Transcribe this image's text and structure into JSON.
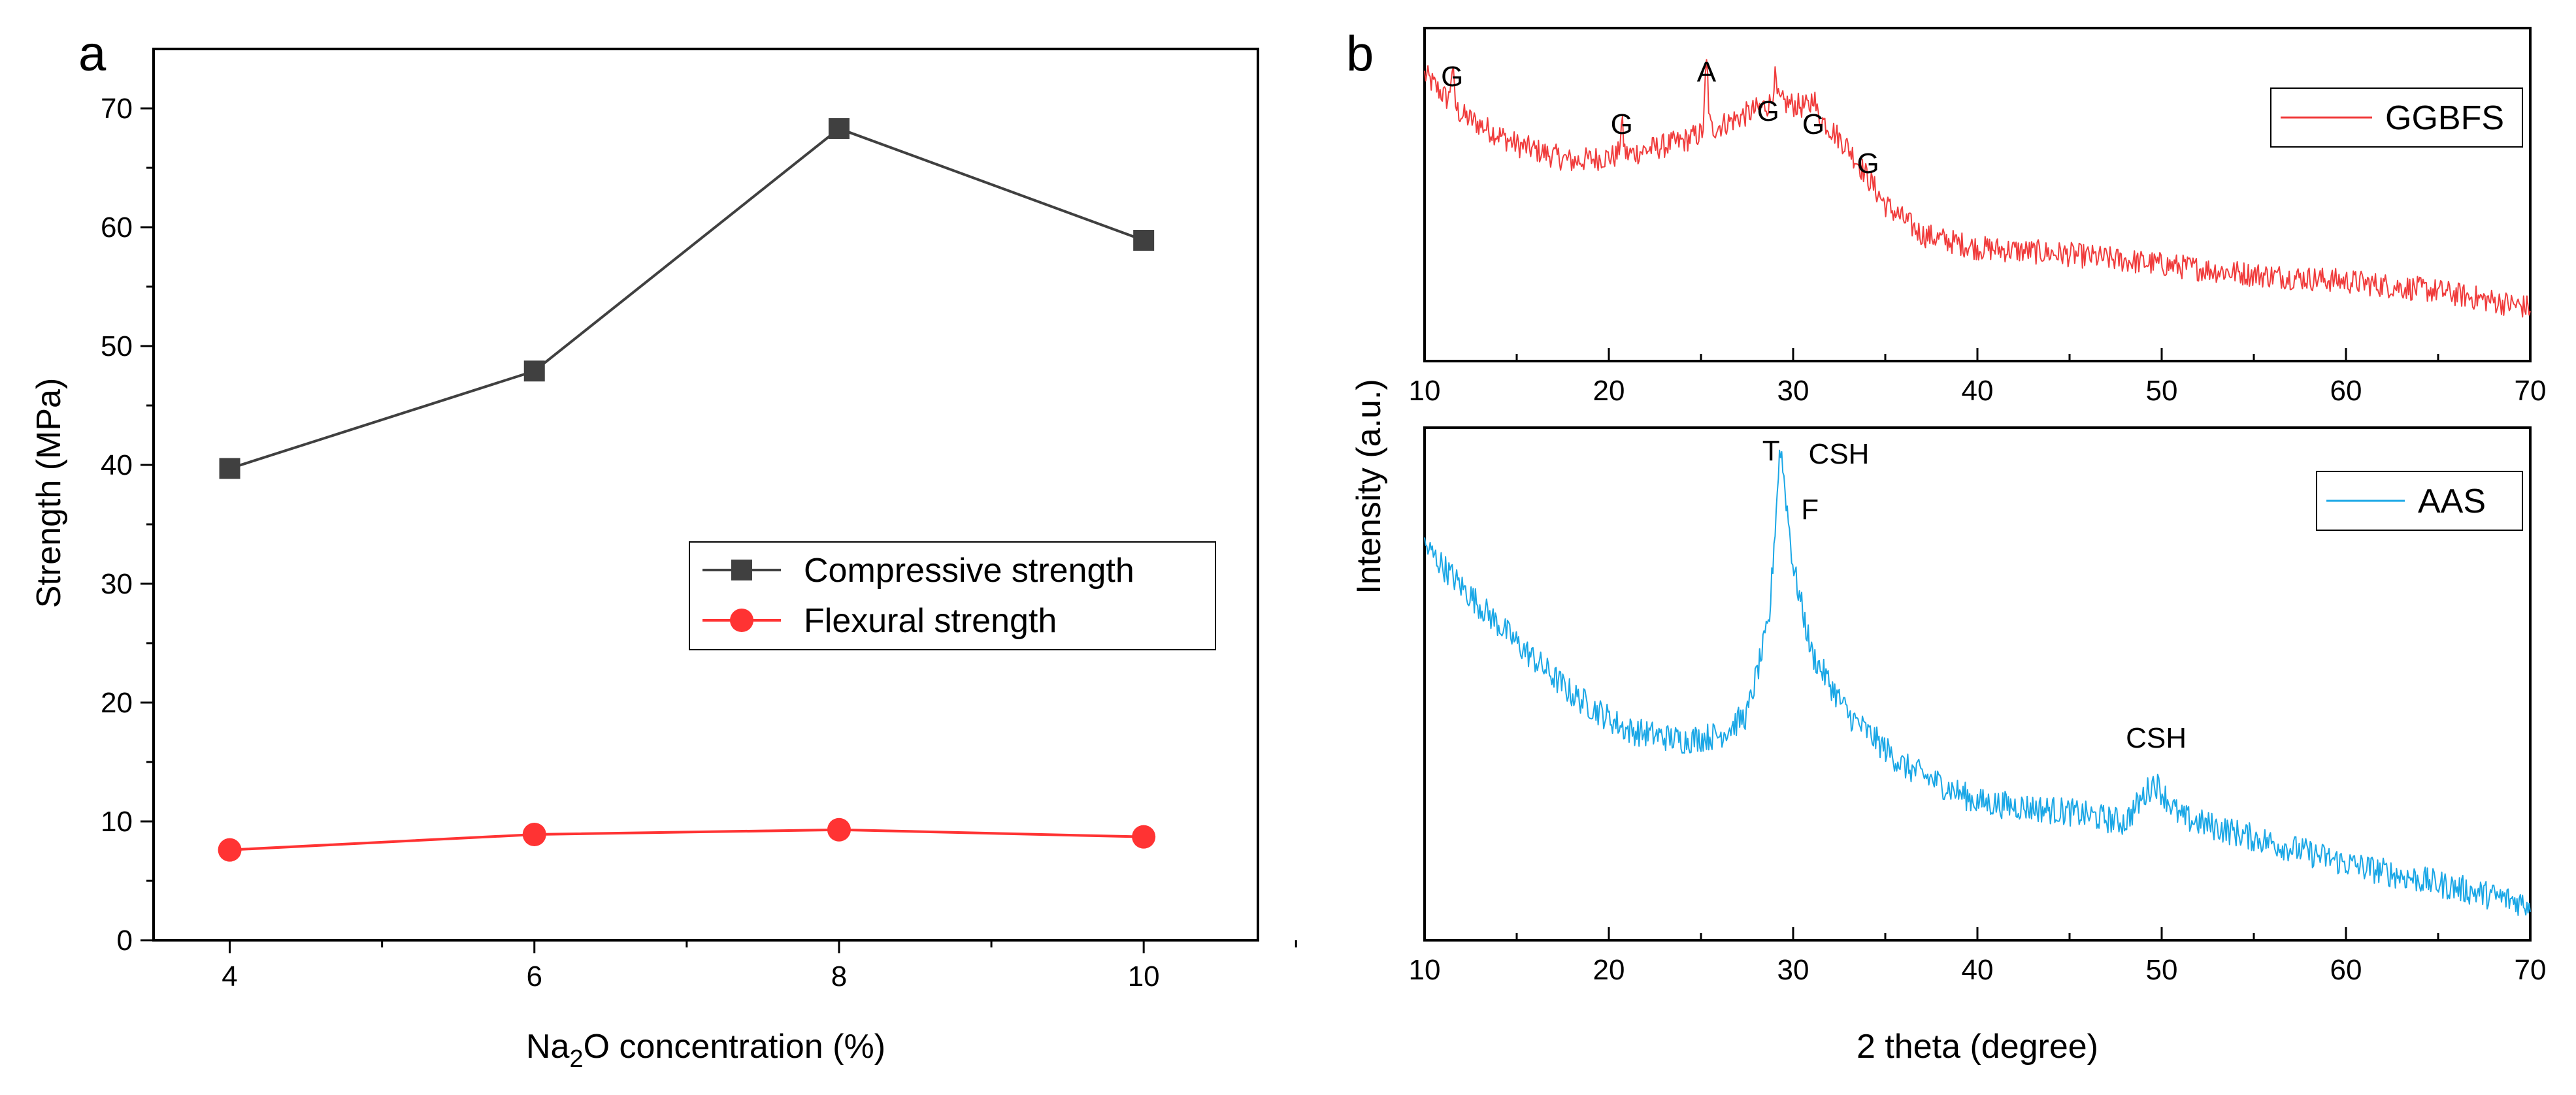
{
  "chart_data": [
    {
      "type": "line",
      "panel_label": "a",
      "xlabel_parts": [
        "Na",
        "2",
        "O concentration (%)"
      ],
      "ylabel": "Strength (MPa)",
      "xlim": [
        3.5,
        10.75
      ],
      "ylim": [
        0,
        75
      ],
      "x_ticks": [
        "4",
        "6",
        "8",
        "10"
      ],
      "y_ticks": [
        "0",
        "10",
        "20",
        "30",
        "40",
        "50",
        "60",
        "70"
      ],
      "categories": [
        4,
        6,
        8,
        10
      ],
      "legend_position": "center-right",
      "series": [
        {
          "name": "Compressive strength",
          "marker": "square",
          "color": "#404040",
          "values": [
            39.7,
            47.9,
            68.3,
            58.9
          ]
        },
        {
          "name": "Flexural strength",
          "marker": "circle",
          "color": "#ff3333",
          "values": [
            7.6,
            8.9,
            9.3,
            8.7
          ]
        }
      ]
    },
    {
      "type": "line",
      "panel_label": "b",
      "xlabel": "2 theta (degree)",
      "ylabel": "Intensity (a.u.)",
      "xlim": [
        10,
        70
      ],
      "x_ticks": [
        "10",
        "20",
        "30",
        "40",
        "50",
        "60",
        "70"
      ],
      "subplots": [
        {
          "name": "GGBFS",
          "color": "#f03c3c",
          "legend_position": "top-right",
          "baseline": [
            [
              10,
              0.86
            ],
            [
              12,
              0.74
            ],
            [
              15,
              0.65
            ],
            [
              18,
              0.6
            ],
            [
              21,
              0.62
            ],
            [
              24,
              0.66
            ],
            [
              27,
              0.73
            ],
            [
              29,
              0.78
            ],
            [
              31,
              0.76
            ],
            [
              33,
              0.64
            ],
            [
              35,
              0.47
            ],
            [
              37,
              0.38
            ],
            [
              40,
              0.34
            ],
            [
              45,
              0.32
            ],
            [
              50,
              0.29
            ],
            [
              55,
              0.26
            ],
            [
              60,
              0.24
            ],
            [
              65,
              0.21
            ],
            [
              70,
              0.16
            ]
          ],
          "peaks": [
            {
              "label": "G",
              "x": 11.5,
              "height": 0.11
            },
            {
              "label": "G",
              "x": 20.7,
              "height": 0.09
            },
            {
              "label": "A",
              "x": 25.3,
              "height": 0.2
            },
            {
              "label": "G",
              "x": 29.0,
              "height": 0.07
            },
            {
              "label": "G",
              "x": 31.1,
              "height": 0.05
            },
            {
              "label": "G",
              "x": 33.0,
              "height": 0.0
            }
          ]
        },
        {
          "name": "AAS",
          "color": "#1aa7e6",
          "legend_position": "top-right",
          "baseline": [
            [
              10,
              0.77
            ],
            [
              12,
              0.69
            ],
            [
              15,
              0.58
            ],
            [
              18,
              0.48
            ],
            [
              21,
              0.41
            ],
            [
              24,
              0.39
            ],
            [
              26,
              0.4
            ],
            [
              27.5,
              0.44
            ],
            [
              28.7,
              0.62
            ],
            [
              29.3,
              0.97
            ],
            [
              30,
              0.73
            ],
            [
              31,
              0.56
            ],
            [
              33,
              0.44
            ],
            [
              36,
              0.34
            ],
            [
              40,
              0.27
            ],
            [
              45,
              0.25
            ],
            [
              48,
              0.23
            ],
            [
              49.6,
              0.31
            ],
            [
              51,
              0.24
            ],
            [
              55,
              0.2
            ],
            [
              60,
              0.15
            ],
            [
              65,
              0.11
            ],
            [
              70,
              0.07
            ]
          ],
          "peaks": [
            {
              "label": "T",
              "x": 28.8,
              "height": 0.0
            },
            {
              "label": "CSH",
              "x": 30.0,
              "height": 0.0
            },
            {
              "label": "F",
              "x": 30.2,
              "height": 0.0
            },
            {
              "label": "CSH",
              "x": 49.7,
              "height": 0.0
            }
          ]
        }
      ]
    }
  ]
}
